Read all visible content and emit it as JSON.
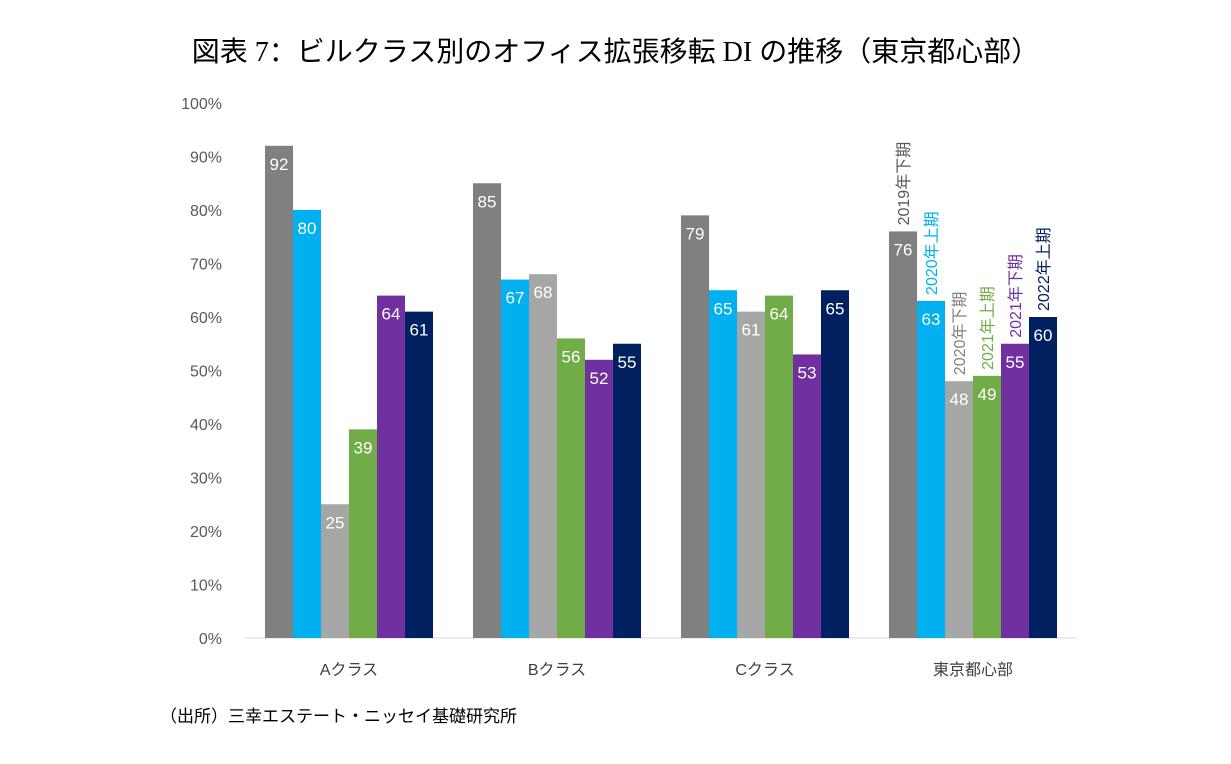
{
  "title": "図表 7：ビルクラス別のオフィス拡張移転 DI の推移（東京都心部）",
  "source": "（出所）三幸エステート・ニッセイ基礎研究所",
  "chart_data": {
    "type": "bar",
    "title": "図表 7：ビルクラス別のオフィス拡張移転 DI の推移（東京都心部）",
    "categories": [
      "Aクラス",
      "Bクラス",
      "Cクラス",
      "東京都心部"
    ],
    "ylim": [
      0,
      100
    ],
    "yticks": [
      "0%",
      "10%",
      "20%",
      "30%",
      "40%",
      "50%",
      "60%",
      "70%",
      "80%",
      "90%",
      "100%"
    ],
    "grid": false,
    "legend": "series labels shown vertically above bars of last group",
    "series": [
      {
        "name": "2019年下期",
        "color": "#808080",
        "label_color": "#595959",
        "values": [
          92,
          85,
          79,
          76
        ]
      },
      {
        "name": "2020年上期",
        "color": "#00B0F0",
        "label_color": "#00B0F0",
        "values": [
          80,
          67,
          65,
          63
        ]
      },
      {
        "name": "2020年下期",
        "color": "#A6A6A6",
        "label_color": "#808080",
        "values": [
          25,
          68,
          61,
          48
        ]
      },
      {
        "name": "2021年上期",
        "color": "#70AD47",
        "label_color": "#70AD47",
        "values": [
          39,
          56,
          64,
          49
        ]
      },
      {
        "name": "2021年下期",
        "color": "#7030A0",
        "label_color": "#7030A0",
        "values": [
          64,
          52,
          53,
          55
        ]
      },
      {
        "name": "2022年上期",
        "color": "#002060",
        "label_color": "#002060",
        "values": [
          61,
          55,
          65,
          60
        ]
      }
    ]
  }
}
